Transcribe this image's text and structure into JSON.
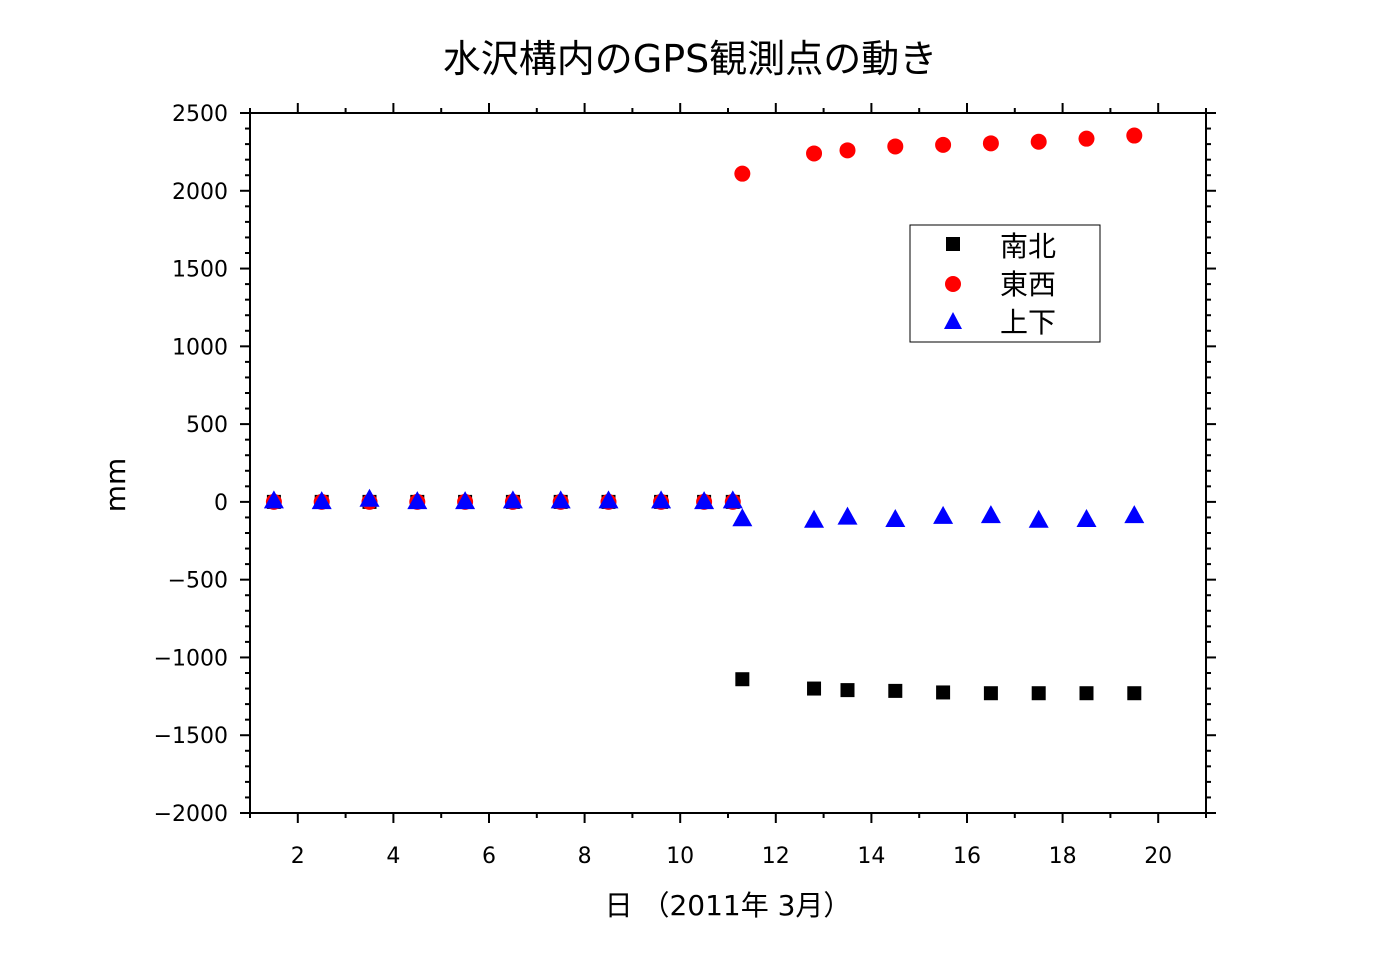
{
  "chart_data": {
    "type": "scatter",
    "title": "水沢構内のGPS観測点の動き",
    "xlabel": "日 （2011年 3月）",
    "ylabel": "mm",
    "xlim": [
      1,
      21
    ],
    "ylim": [
      -2000,
      2500
    ],
    "x_ticks": [
      2,
      4,
      6,
      8,
      10,
      12,
      14,
      16,
      18,
      20
    ],
    "y_ticks": [
      2500,
      2000,
      1500,
      1000,
      500,
      0,
      -500,
      -1000,
      -1500,
      -2000
    ],
    "y_tick_labels": [
      "2500",
      "2000",
      "1500",
      "1000",
      "500",
      "0",
      "−500",
      "−1000",
      "−1500",
      "−2000"
    ],
    "grid": false,
    "legend_position": "upper-right inside plot",
    "series": [
      {
        "name": "南北",
        "marker": "square",
        "color": "#000000",
        "points": [
          [
            1.5,
            0
          ],
          [
            2.5,
            0
          ],
          [
            3.5,
            0
          ],
          [
            4.5,
            0
          ],
          [
            5.5,
            0
          ],
          [
            6.5,
            0
          ],
          [
            7.5,
            0
          ],
          [
            8.5,
            0
          ],
          [
            9.6,
            0
          ],
          [
            10.5,
            0
          ],
          [
            11.1,
            0
          ],
          [
            11.3,
            -1140
          ],
          [
            12.8,
            -1200
          ],
          [
            13.5,
            -1210
          ],
          [
            14.5,
            -1215
          ],
          [
            15.5,
            -1225
          ],
          [
            16.5,
            -1230
          ],
          [
            17.5,
            -1230
          ],
          [
            18.5,
            -1230
          ],
          [
            19.5,
            -1230
          ]
        ]
      },
      {
        "name": "東西",
        "marker": "circle",
        "color": "#ff0000",
        "points": [
          [
            1.5,
            0
          ],
          [
            2.5,
            0
          ],
          [
            3.5,
            0
          ],
          [
            4.5,
            0
          ],
          [
            5.5,
            0
          ],
          [
            6.5,
            0
          ],
          [
            7.5,
            0
          ],
          [
            8.5,
            0
          ],
          [
            9.6,
            0
          ],
          [
            10.5,
            0
          ],
          [
            11.1,
            0
          ],
          [
            11.3,
            2110
          ],
          [
            12.8,
            2240
          ],
          [
            13.5,
            2260
          ],
          [
            14.5,
            2285
          ],
          [
            15.5,
            2295
          ],
          [
            16.5,
            2305
          ],
          [
            17.5,
            2315
          ],
          [
            18.5,
            2335
          ],
          [
            19.5,
            2355
          ]
        ]
      },
      {
        "name": "上下",
        "marker": "triangle",
        "color": "#0000ff",
        "points": [
          [
            1.5,
            10
          ],
          [
            2.5,
            5
          ],
          [
            3.5,
            20
          ],
          [
            4.5,
            5
          ],
          [
            5.5,
            5
          ],
          [
            6.5,
            10
          ],
          [
            7.5,
            10
          ],
          [
            8.5,
            10
          ],
          [
            9.6,
            10
          ],
          [
            10.5,
            5
          ],
          [
            11.1,
            10
          ],
          [
            11.3,
            -105
          ],
          [
            12.8,
            -115
          ],
          [
            13.5,
            -95
          ],
          [
            14.5,
            -110
          ],
          [
            15.5,
            -90
          ],
          [
            16.5,
            -85
          ],
          [
            17.5,
            -115
          ],
          [
            18.5,
            -110
          ],
          [
            19.5,
            -85
          ]
        ]
      }
    ]
  }
}
